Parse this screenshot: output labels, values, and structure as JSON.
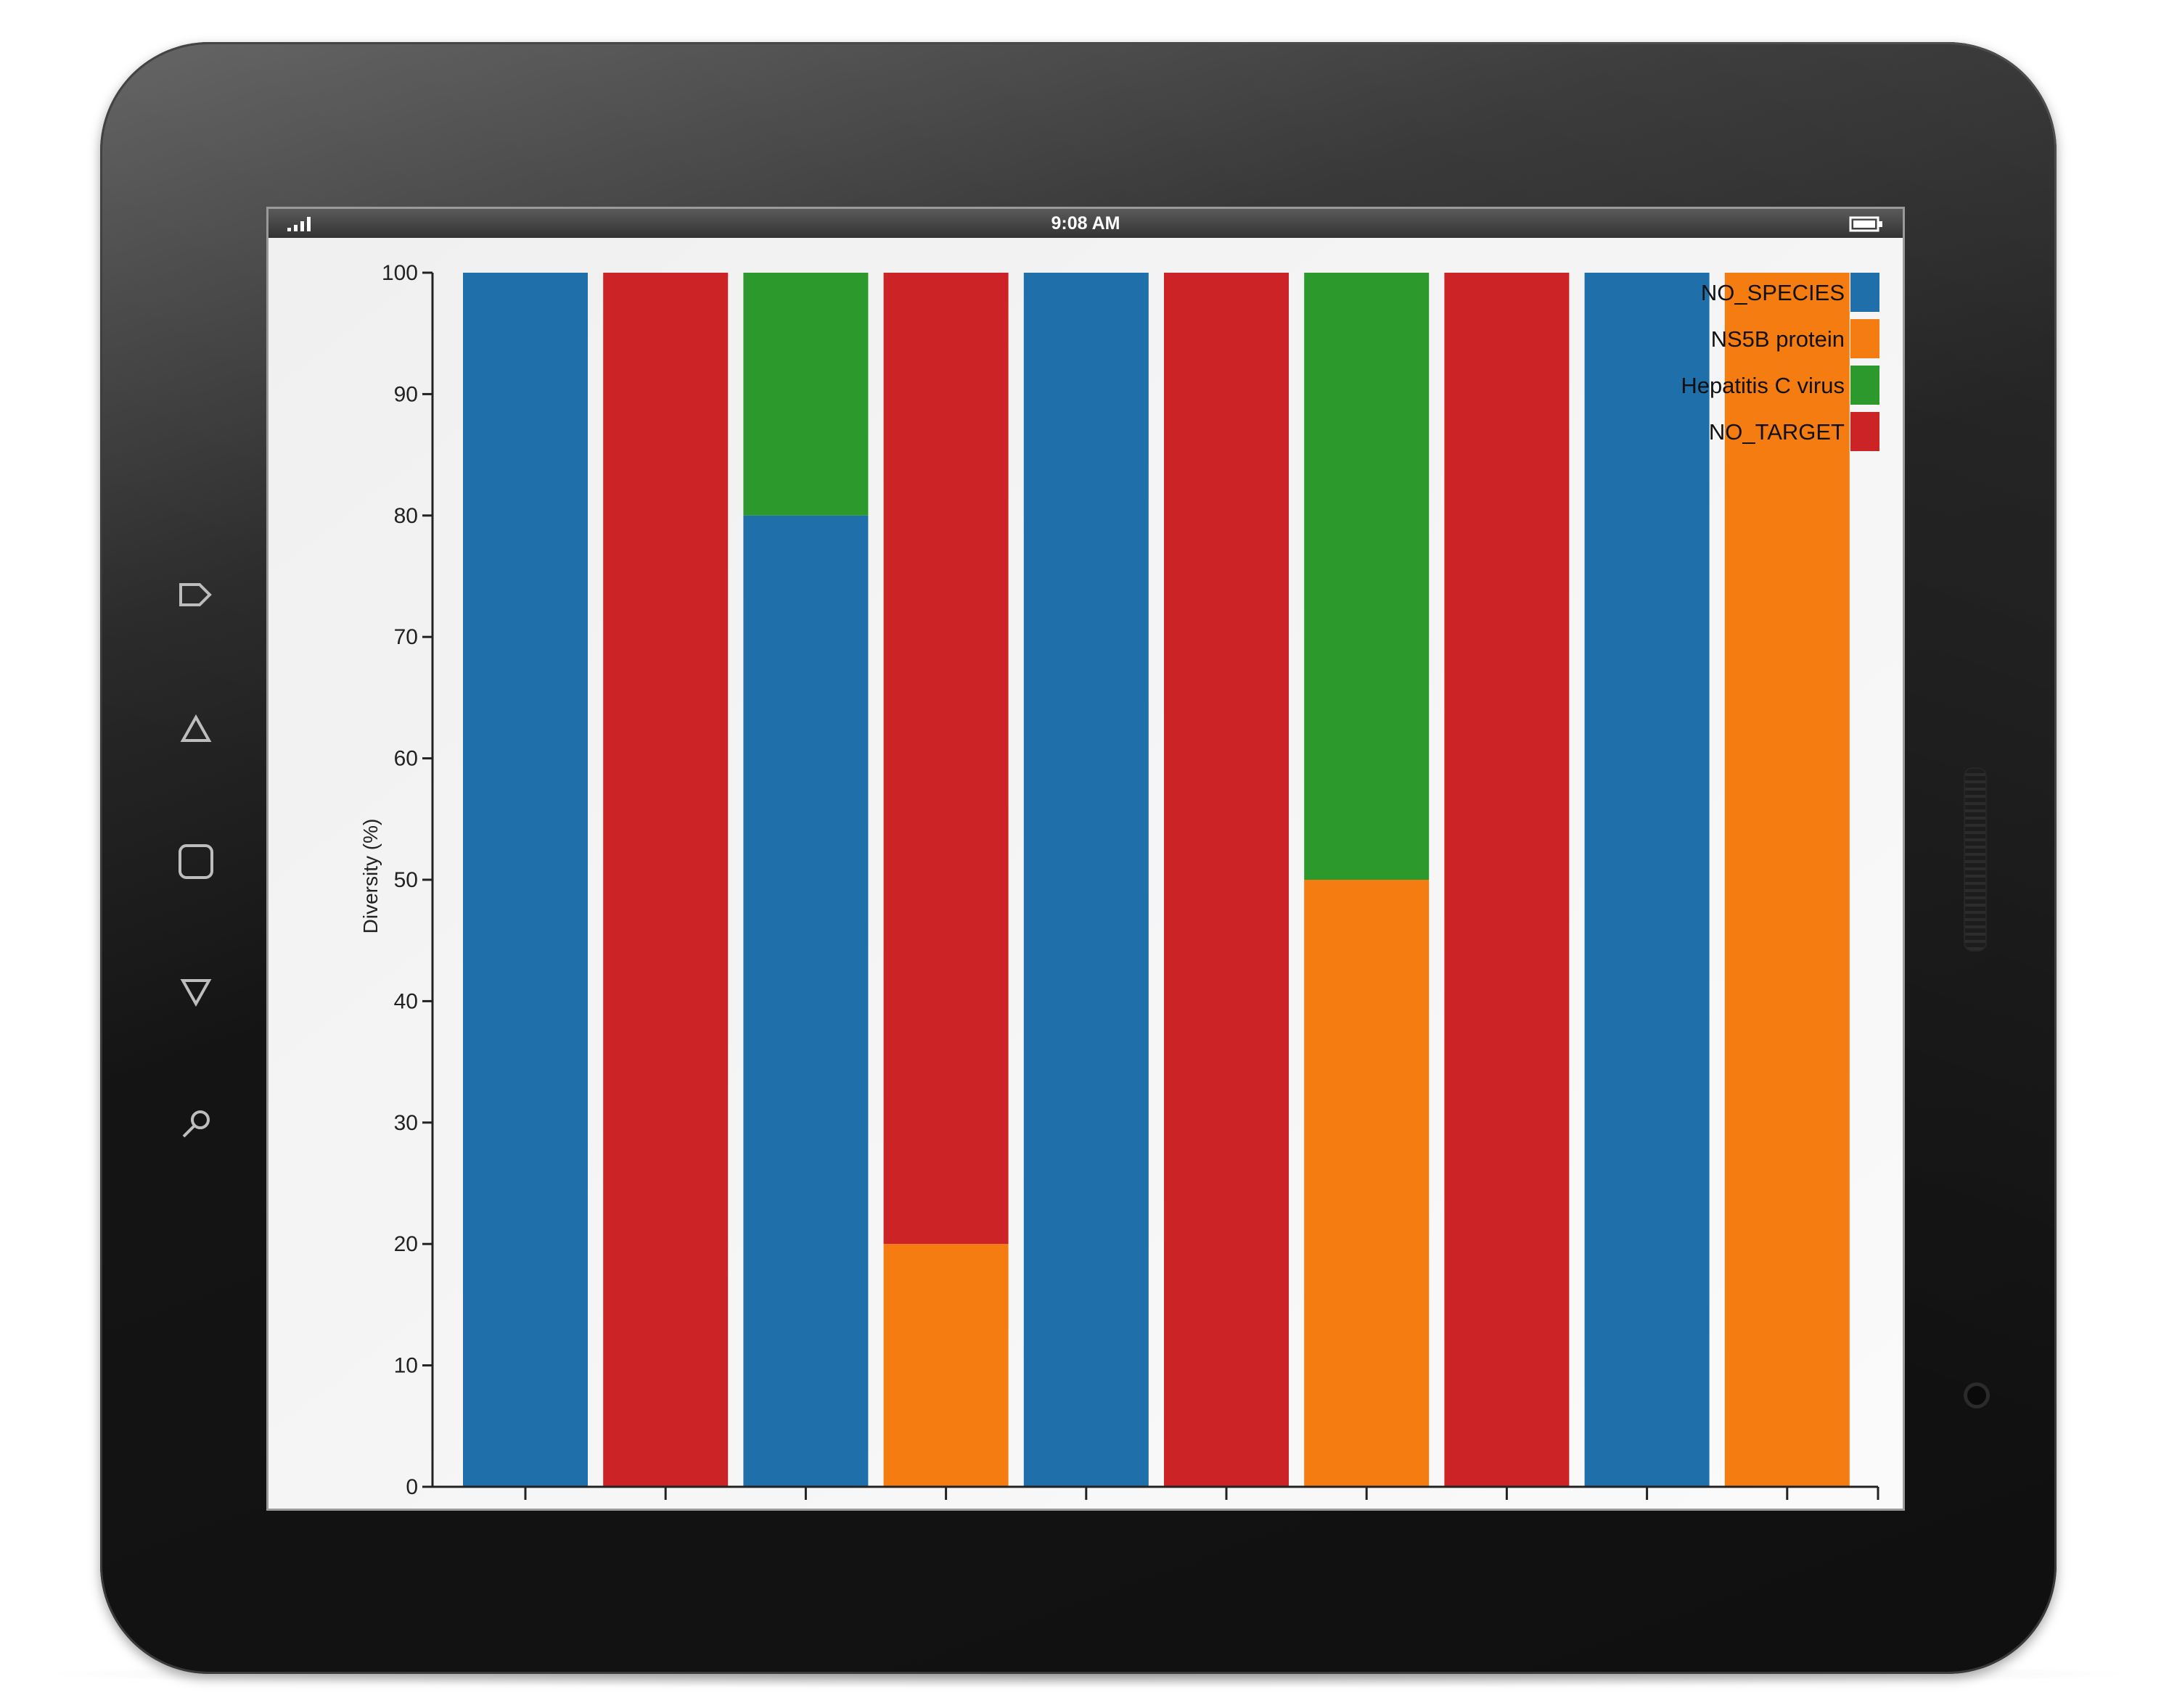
{
  "status_bar": {
    "time": "9:08 AM"
  },
  "icons": {
    "side_nav": [
      "exit-icon",
      "home-triangle-icon",
      "square-icon",
      "down-triangle-icon",
      "search-icon"
    ],
    "status": [
      "signal-icon",
      "battery-icon"
    ]
  },
  "chart_data": {
    "type": "bar",
    "stacked": true,
    "ylabel": "Diversity (%)",
    "xlabel": "",
    "ylim": [
      0,
      100
    ],
    "yticks": [
      0,
      10,
      20,
      30,
      40,
      50,
      60,
      70,
      80,
      90,
      100
    ],
    "categories": [
      "",
      "",
      "",
      "",
      "",
      "",
      "",
      "",
      "",
      ""
    ],
    "series": [
      {
        "name": "NO_SPECIES",
        "color": "#1f6fab",
        "values": [
          100,
          0,
          80,
          0,
          100,
          0,
          0,
          0,
          100,
          0
        ]
      },
      {
        "name": "NS5B protein",
        "color": "#f57c10",
        "values": [
          0,
          0,
          0,
          20,
          0,
          0,
          50,
          0,
          0,
          100
        ]
      },
      {
        "name": "Hepatitis C virus",
        "color": "#2b992b",
        "values": [
          0,
          0,
          20,
          0,
          0,
          0,
          50,
          0,
          0,
          0
        ]
      },
      {
        "name": "NO_TARGET",
        "color": "#cc2326",
        "values": [
          0,
          100,
          0,
          80,
          0,
          100,
          0,
          100,
          0,
          0
        ]
      }
    ],
    "stack_order": [
      "NO_SPECIES",
      "NS5B protein",
      "Hepatitis C virus",
      "NO_TARGET"
    ],
    "legend": "top-right",
    "grid": false
  }
}
